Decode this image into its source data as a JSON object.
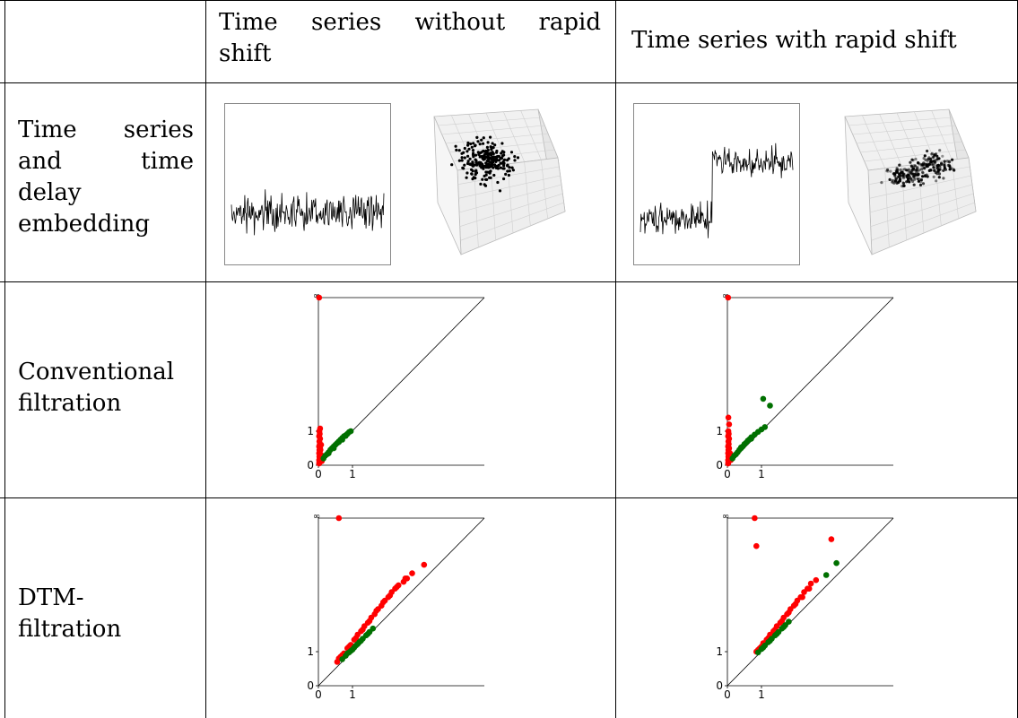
{
  "table": {
    "col_headers": [
      "",
      "Time series without rapid shift",
      "Time series with rapid shift"
    ],
    "header_col1_lines": [
      "Time series without rapid",
      "shift"
    ],
    "header_col2": "Time series with rapid shift",
    "row_labels": [
      {
        "lines": [
          "Time series",
          "and time",
          "delay",
          "embedding"
        ]
      },
      {
        "lines": [
          "Conventional",
          "filtration"
        ]
      },
      {
        "lines": [
          "DTM-",
          "filtration"
        ]
      }
    ]
  },
  "figures": {
    "time_series_panels": [
      {
        "id": "without-shift",
        "rapid_shift": false
      },
      {
        "id": "with-shift",
        "rapid_shift": true
      }
    ],
    "embedding_panels": [
      {
        "id": "embedding-without-shift",
        "marker_color": "#000000"
      },
      {
        "id": "embedding-with-shift",
        "marker_color": "#000000"
      }
    ]
  },
  "chart_data": [
    {
      "type": "scatter",
      "panel": "conventional-without-shift",
      "xticks": [
        "0",
        "1"
      ],
      "yticks": [
        "0",
        "1"
      ],
      "infinity_label": "∞",
      "series": [
        {
          "color": "#ff0000",
          "points": [
            [
              0.02,
              0.05
            ],
            [
              0.03,
              0.1
            ],
            [
              0.02,
              0.15
            ],
            [
              0.04,
              0.2
            ],
            [
              0.03,
              0.25
            ],
            [
              0.05,
              0.3
            ],
            [
              0.02,
              0.35
            ],
            [
              0.04,
              0.4
            ],
            [
              0.03,
              0.45
            ],
            [
              0.05,
              0.5
            ],
            [
              0.02,
              0.55
            ],
            [
              0.04,
              0.62
            ],
            [
              0.03,
              0.7
            ],
            [
              0.05,
              0.78
            ],
            [
              0.02,
              0.85
            ],
            [
              0.04,
              0.92
            ],
            [
              0.03,
              1.0
            ],
            [
              0.05,
              1.08
            ],
            [
              0.07,
              0.15
            ],
            [
              0.08,
              0.3
            ],
            [
              0.06,
              0.45
            ],
            [
              0.08,
              0.6
            ],
            [
              0.1,
              0.12
            ],
            [
              0.12,
              0.18
            ],
            [
              0.02,
              8.0
            ]
          ]
        },
        {
          "color": "#007000",
          "points": [
            [
              0.15,
              0.2
            ],
            [
              0.2,
              0.28
            ],
            [
              0.25,
              0.32
            ],
            [
              0.3,
              0.38
            ],
            [
              0.35,
              0.45
            ],
            [
              0.4,
              0.5
            ],
            [
              0.45,
              0.55
            ],
            [
              0.5,
              0.6
            ],
            [
              0.55,
              0.65
            ],
            [
              0.6,
              0.7
            ],
            [
              0.65,
              0.75
            ],
            [
              0.7,
              0.8
            ],
            [
              0.75,
              0.85
            ],
            [
              0.8,
              0.88
            ],
            [
              0.85,
              0.92
            ],
            [
              0.9,
              0.97
            ],
            [
              0.95,
              1.0
            ],
            [
              0.3,
              0.35
            ],
            [
              0.45,
              0.5
            ],
            [
              0.6,
              0.68
            ],
            [
              0.7,
              0.75
            ],
            [
              0.8,
              0.86
            ]
          ]
        }
      ]
    },
    {
      "type": "scatter",
      "panel": "conventional-with-shift",
      "xticks": [
        "0",
        "1"
      ],
      "yticks": [
        "0",
        "1"
      ],
      "infinity_label": "∞",
      "series": [
        {
          "color": "#ff0000",
          "points": [
            [
              0.02,
              0.05
            ],
            [
              0.03,
              0.1
            ],
            [
              0.02,
              0.15
            ],
            [
              0.04,
              0.2
            ],
            [
              0.03,
              0.25
            ],
            [
              0.05,
              0.3
            ],
            [
              0.02,
              0.35
            ],
            [
              0.04,
              0.4
            ],
            [
              0.03,
              0.45
            ],
            [
              0.05,
              0.5
            ],
            [
              0.02,
              0.55
            ],
            [
              0.04,
              0.62
            ],
            [
              0.03,
              0.7
            ],
            [
              0.05,
              0.78
            ],
            [
              0.02,
              0.85
            ],
            [
              0.04,
              0.92
            ],
            [
              0.03,
              1.0
            ],
            [
              0.05,
              1.2
            ],
            [
              0.03,
              1.4
            ],
            [
              0.07,
              0.2
            ],
            [
              0.08,
              0.35
            ],
            [
              0.1,
              0.15
            ],
            [
              0.02,
              8.0
            ]
          ]
        },
        {
          "color": "#007000",
          "points": [
            [
              0.15,
              0.2
            ],
            [
              0.2,
              0.28
            ],
            [
              0.25,
              0.32
            ],
            [
              0.3,
              0.38
            ],
            [
              0.35,
              0.45
            ],
            [
              0.4,
              0.52
            ],
            [
              0.45,
              0.55
            ],
            [
              0.5,
              0.62
            ],
            [
              0.55,
              0.66
            ],
            [
              0.6,
              0.72
            ],
            [
              0.65,
              0.76
            ],
            [
              0.7,
              0.82
            ],
            [
              0.8,
              0.9
            ],
            [
              0.9,
              0.98
            ],
            [
              1.0,
              1.05
            ],
            [
              1.1,
              1.12
            ],
            [
              1.05,
              1.95
            ],
            [
              1.25,
              1.75
            ],
            [
              0.4,
              0.5
            ],
            [
              0.7,
              0.78
            ]
          ]
        }
      ]
    },
    {
      "type": "scatter",
      "panel": "dtm-without-shift",
      "xticks": [
        "0",
        "1"
      ],
      "yticks": [
        "0",
        "1"
      ],
      "infinity_label": "∞",
      "series": [
        {
          "color": "#ff0000",
          "points": [
            [
              0.6,
              8.0
            ],
            [
              0.55,
              0.7
            ],
            [
              0.65,
              0.85
            ],
            [
              0.75,
              0.95
            ],
            [
              0.85,
              1.1
            ],
            [
              0.95,
              1.2
            ],
            [
              1.05,
              1.35
            ],
            [
              1.15,
              1.5
            ],
            [
              1.25,
              1.6
            ],
            [
              1.35,
              1.75
            ],
            [
              1.45,
              1.85
            ],
            [
              1.55,
              2.0
            ],
            [
              1.65,
              2.1
            ],
            [
              1.75,
              2.25
            ],
            [
              1.85,
              2.35
            ],
            [
              1.95,
              2.5
            ],
            [
              2.05,
              2.6
            ],
            [
              2.15,
              2.75
            ],
            [
              2.25,
              2.85
            ],
            [
              2.35,
              2.95
            ],
            [
              2.5,
              3.05
            ],
            [
              2.6,
              3.15
            ],
            [
              2.75,
              3.3
            ],
            [
              3.1,
              3.55
            ],
            [
              0.6,
              0.8
            ],
            [
              0.7,
              0.9
            ],
            [
              0.9,
              1.15
            ],
            [
              1.1,
              1.4
            ],
            [
              1.3,
              1.65
            ],
            [
              1.5,
              1.9
            ],
            [
              1.7,
              2.2
            ],
            [
              1.9,
              2.45
            ],
            [
              2.1,
              2.65
            ],
            [
              2.3,
              2.9
            ],
            [
              2.55,
              3.15
            ]
          ]
        },
        {
          "color": "#007000",
          "points": [
            [
              0.7,
              0.78
            ],
            [
              0.8,
              0.88
            ],
            [
              0.9,
              0.98
            ],
            [
              1.0,
              1.06
            ],
            [
              1.1,
              1.18
            ],
            [
              1.2,
              1.28
            ],
            [
              1.3,
              1.38
            ],
            [
              1.4,
              1.48
            ],
            [
              1.5,
              1.58
            ],
            [
              1.6,
              1.68
            ],
            [
              0.85,
              0.95
            ],
            [
              1.05,
              1.12
            ],
            [
              1.25,
              1.32
            ],
            [
              1.45,
              1.52
            ],
            [
              1.15,
              1.22
            ],
            [
              0.95,
              1.02
            ]
          ]
        }
      ]
    },
    {
      "type": "scatter",
      "panel": "dtm-with-shift",
      "xticks": [
        "0",
        "1"
      ],
      "yticks": [
        "0",
        "1"
      ],
      "infinity_label": "∞",
      "series": [
        {
          "color": "#ff0000",
          "points": [
            [
              0.8,
              8.0
            ],
            [
              0.85,
              4.1
            ],
            [
              3.05,
              4.3
            ],
            [
              0.85,
              1.0
            ],
            [
              0.95,
              1.1
            ],
            [
              1.05,
              1.25
            ],
            [
              1.15,
              1.35
            ],
            [
              1.25,
              1.5
            ],
            [
              1.35,
              1.6
            ],
            [
              1.45,
              1.75
            ],
            [
              1.55,
              1.85
            ],
            [
              1.65,
              2.0
            ],
            [
              1.75,
              2.1
            ],
            [
              1.85,
              2.25
            ],
            [
              1.95,
              2.35
            ],
            [
              2.05,
              2.5
            ],
            [
              2.15,
              2.6
            ],
            [
              2.25,
              2.75
            ],
            [
              2.35,
              2.85
            ],
            [
              2.45,
              3.0
            ],
            [
              2.6,
              3.1
            ],
            [
              0.9,
              1.05
            ],
            [
              1.0,
              1.15
            ],
            [
              1.2,
              1.4
            ],
            [
              1.4,
              1.65
            ],
            [
              1.6,
              1.9
            ],
            [
              1.8,
              2.15
            ],
            [
              2.0,
              2.4
            ],
            [
              2.2,
              2.6
            ],
            [
              2.4,
              2.85
            ]
          ]
        },
        {
          "color": "#007000",
          "points": [
            [
              0.9,
              0.98
            ],
            [
              1.0,
              1.08
            ],
            [
              1.1,
              1.18
            ],
            [
              1.2,
              1.28
            ],
            [
              1.3,
              1.38
            ],
            [
              1.4,
              1.48
            ],
            [
              1.5,
              1.58
            ],
            [
              1.6,
              1.68
            ],
            [
              1.7,
              1.78
            ],
            [
              1.8,
              1.88
            ],
            [
              3.2,
              3.6
            ],
            [
              2.9,
              3.25
            ],
            [
              1.05,
              1.12
            ],
            [
              1.25,
              1.32
            ],
            [
              1.45,
              1.52
            ],
            [
              1.65,
              1.72
            ]
          ]
        }
      ]
    }
  ]
}
